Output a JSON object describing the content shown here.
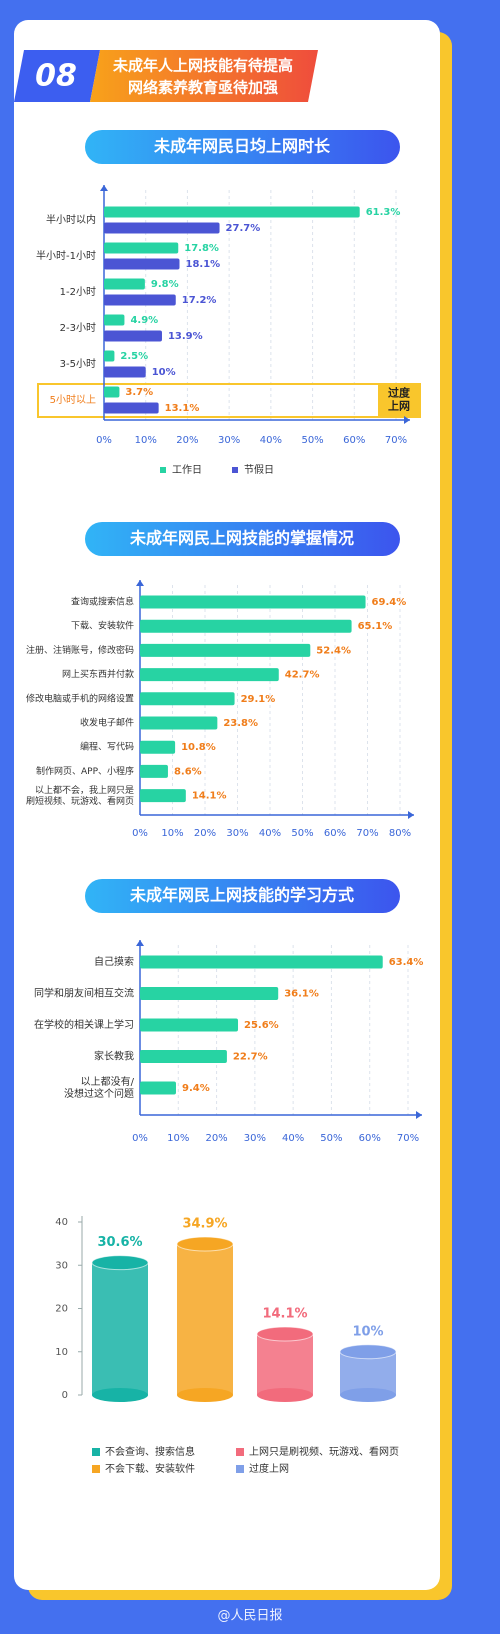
{
  "header": {
    "badge": "08",
    "title_lines": [
      "未成年人上网技能有待提高",
      "网络素养教育亟待加强"
    ]
  },
  "footer": "@人民日报",
  "chart_data": [
    {
      "type": "hbar",
      "title": "未成年网民日均上网时长",
      "categories": [
        "半小时以内",
        "半小时-1小时",
        "1-2小时",
        "2-3小时",
        "3-5小时",
        "5小时以上"
      ],
      "series": [
        {
          "name": "工作日",
          "color": "#27d3a3",
          "values": [
            61.3,
            17.8,
            9.8,
            4.9,
            2.5,
            3.7
          ],
          "value_labels": [
            "61.3%",
            "17.8%",
            "9.8%",
            "4.9%",
            "2.5%",
            "3.7%"
          ]
        },
        {
          "name": "节假日",
          "color": "#4b55d4",
          "values": [
            27.7,
            18.1,
            17.2,
            13.9,
            10,
            13.1
          ],
          "value_labels": [
            "27.7%",
            "18.1%",
            "17.2%",
            "13.9%",
            "10%",
            "13.1%"
          ]
        }
      ],
      "annotation": "过度上网",
      "xlim": [
        0,
        70
      ],
      "xticks": [
        {
          "value": 0,
          "label": "0%"
        },
        {
          "value": 10,
          "label": "10%"
        },
        {
          "value": 20,
          "label": "20%"
        },
        {
          "value": 30,
          "label": "30%"
        },
        {
          "value": 40,
          "label": "40%"
        },
        {
          "value": 50,
          "label": "50%"
        },
        {
          "value": 60,
          "label": "60%"
        },
        {
          "value": 70,
          "label": "70%"
        }
      ],
      "grid": true
    },
    {
      "type": "hbar",
      "title": "未成年网民上网技能的掌握情况",
      "categories": [
        "查询或搜索信息",
        "下载、安装软件",
        "注册、注销账号，修改密码",
        "网上买东西并付款",
        "修改电脑或手机的网络设置",
        "收发电子邮件",
        "编程、写代码",
        "制作网页、APP、小程序",
        "以上都不会，我上网只是\n刷短视频、玩游戏、看网页"
      ],
      "series": [
        {
          "color": "#27d3a3",
          "values": [
            69.4,
            65.1,
            52.4,
            42.7,
            29.1,
            23.8,
            10.8,
            8.6,
            14.1
          ],
          "value_labels": [
            "69.4%",
            "65.1%",
            "52.4%",
            "42.7%",
            "29.1%",
            "23.8%",
            "10.8%",
            "8.6%",
            "14.1%"
          ]
        }
      ],
      "xlim": [
        0,
        80
      ],
      "xticks": [
        {
          "value": 0,
          "label": "0%"
        },
        {
          "value": 10,
          "label": "10%"
        },
        {
          "value": 20,
          "label": "20%"
        },
        {
          "value": 30,
          "label": "30%"
        },
        {
          "value": 40,
          "label": "40%"
        },
        {
          "value": 50,
          "label": "50%"
        },
        {
          "value": 60,
          "label": "60%"
        },
        {
          "value": 70,
          "label": "70%"
        },
        {
          "value": 80,
          "label": "80%"
        }
      ],
      "grid": true
    },
    {
      "type": "hbar",
      "title": "未成年网民上网技能的学习方式",
      "categories": [
        "自己摸索",
        "同学和朋友间相互交流",
        "在学校的相关课上学习",
        "家长教我",
        "以上都没有/\n没想过这个问题"
      ],
      "series": [
        {
          "color": "#27d3a3",
          "values": [
            63.4,
            36.1,
            25.6,
            22.7,
            9.4
          ],
          "value_labels": [
            "63.4%",
            "36.1%",
            "25.6%",
            "22.7%",
            "9.4%"
          ]
        }
      ],
      "xlim": [
        0,
        70
      ],
      "xticks": [
        {
          "value": 0,
          "label": "0%"
        },
        {
          "value": 10,
          "label": "10%"
        },
        {
          "value": 20,
          "label": "20%"
        },
        {
          "value": 30,
          "label": "30%"
        },
        {
          "value": 40,
          "label": "40%"
        },
        {
          "value": 50,
          "label": "50%"
        },
        {
          "value": 60,
          "label": "60%"
        },
        {
          "value": 70,
          "label": "70%"
        }
      ],
      "grid": true
    },
    {
      "type": "cylinder",
      "series": [
        {
          "name": "不会查询、搜索信息",
          "color": "#17b3a6",
          "values": [
            30.6
          ],
          "value_labels": [
            "30.6%"
          ]
        },
        {
          "name": "不会下载、安装软件",
          "color": "#f6a623",
          "values": [
            34.9
          ],
          "value_labels": [
            "34.9%"
          ]
        },
        {
          "name": "上网只是刷视频、玩游戏、看网页",
          "color": "#f26b7c",
          "values": [
            14.1
          ],
          "value_labels": [
            "14.1%"
          ]
        },
        {
          "name": "过度上网",
          "color": "#7f9fe8",
          "values": [
            10
          ],
          "value_labels": [
            "10%"
          ]
        }
      ],
      "ylim": [
        0,
        40
      ],
      "yticks": [
        0,
        10,
        20,
        30,
        40
      ]
    }
  ]
}
